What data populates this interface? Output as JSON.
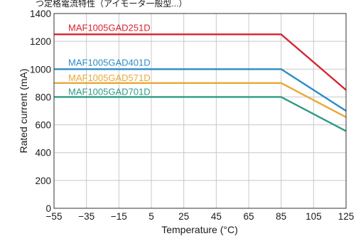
{
  "header_text": "つ定格電流特性（アイモータ一般型...）",
  "chart_data": {
    "type": "line",
    "title": "",
    "xlabel": "Temperature (°C)",
    "ylabel": "Rated current (mA)",
    "xlim": [
      -55,
      125
    ],
    "ylim": [
      0,
      1400
    ],
    "xticks": [
      -55,
      -35,
      -15,
      5,
      25,
      45,
      65,
      85,
      105,
      125
    ],
    "yticks": [
      0,
      200,
      400,
      600,
      800,
      1000,
      1200,
      1400
    ],
    "xtick_labels": [
      "−55",
      "−35",
      "−15",
      "5",
      "25",
      "45",
      "65",
      "85",
      "105",
      "125"
    ],
    "ytick_labels": [
      "0",
      "200",
      "400",
      "600",
      "800",
      "1000",
      "1200",
      "1400"
    ],
    "grid": true,
    "legend": "inline labels",
    "series": [
      {
        "name": "MAF1005GAD251D",
        "color": "#d7232f",
        "x": [
          -55,
          85,
          125
        ],
        "y": [
          1250,
          1250,
          850
        ]
      },
      {
        "name": "MAF1005GAD401D",
        "color": "#2b8cc4",
        "x": [
          -55,
          85,
          125
        ],
        "y": [
          1000,
          1000,
          700
        ]
      },
      {
        "name": "MAF1005GAD571D",
        "color": "#e9a83a",
        "x": [
          -55,
          85,
          125
        ],
        "y": [
          900,
          900,
          655
        ]
      },
      {
        "name": "MAF1005GAD701D",
        "color": "#2e9b84",
        "x": [
          -55,
          85,
          125
        ],
        "y": [
          800,
          800,
          555
        ]
      }
    ]
  }
}
